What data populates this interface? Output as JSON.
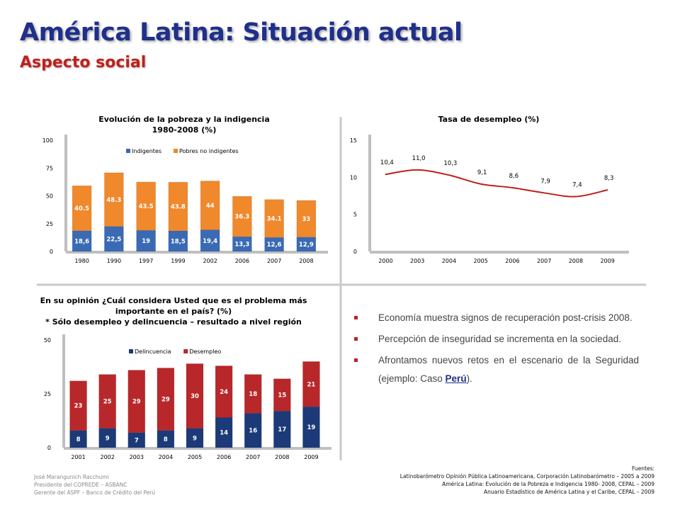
{
  "header": {
    "title": "América Latina: Situación actual",
    "subtitle": "Aspecto social"
  },
  "colors": {
    "title": "#1f2f8a",
    "subtitle": "#c0201b",
    "indigentes": "#3a6ab4",
    "pobres": "#f0882c",
    "delincuencia": "#1c3a78",
    "desempleo": "#b8272a",
    "unemployment_line": "#c0201b"
  },
  "poverty_chart": {
    "title_line1": "Evolución de la pobreza y la indigencia",
    "title_line2": "1980-2008 (%)"
  },
  "unemployment_chart": {
    "title": "Tasa de desempleo (%)"
  },
  "opinion_chart": {
    "title_line1": "En su opinión ¿Cuál considera Usted que es el problema más",
    "title_line2": "importante en el país? (%)",
    "title_line3": "* Sólo desempleo y delincuencia – resultado a nivel región"
  },
  "bullets": [
    "Economía muestra signos de recuperación post-crisis 2008.",
    "Percepción de inseguridad se incrementa en la sociedad.",
    "Afrontamos nuevos retos en el escenario de la Seguridad (ejemplo: Caso "
  ],
  "bullet3_link": "Perú",
  "bullet3_tail": ").",
  "author": {
    "line1": "José Marangunich Racchumi",
    "line2": "Presidente del COPREDE – ASBANC",
    "line3": "Gerente del ASPF – Banco de Crédito del Perú"
  },
  "sources": {
    "heading": "Fuentes:",
    "line1": "Latinobarómetro Opinión Pública Latinoamericana, Corporación Latinobarómetro – 2005 a 2009",
    "line2": "América Latina: Evolución de la Pobreza e Indigencia 1980- 2008, CEPAL – 2009",
    "line3": "Anuario Estadístico de América Latina y el Caribe, CEPAL – 2009"
  },
  "chart_data": [
    {
      "type": "bar",
      "stacked": true,
      "title": "Evolución de la pobreza y la indigencia 1980-2008 (%)",
      "categories": [
        "1980",
        "1990",
        "1997",
        "1999",
        "2002",
        "2006",
        "2007",
        "2008"
      ],
      "series": [
        {
          "name": "Indigentes",
          "values": [
            18.6,
            22.5,
            19,
            18.5,
            19.4,
            13.3,
            12.6,
            12.9
          ],
          "labels": [
            "18,6",
            "22,5",
            "19",
            "18,5",
            "19,4",
            "13,3",
            "12,6",
            "12,9"
          ]
        },
        {
          "name": "Pobres no indigentes",
          "values": [
            40.5,
            48.3,
            43.5,
            43.8,
            44,
            36.3,
            34.1,
            33
          ],
          "labels": [
            "40.5",
            "48.3",
            "43.5",
            "43.8",
            "44",
            "36.3",
            "34.1",
            "33"
          ]
        }
      ],
      "ylim": [
        0,
        100
      ],
      "yticks": [
        0,
        25,
        50,
        75,
        100
      ],
      "legend": "top-center"
    },
    {
      "type": "line",
      "title": "Tasa de desempleo (%)",
      "categories": [
        "2000",
        "2003",
        "2004",
        "2005",
        "2006",
        "2007",
        "2008",
        "2009"
      ],
      "values": [
        10.4,
        11.0,
        10.3,
        9.1,
        8.6,
        7.9,
        7.4,
        8.3
      ],
      "labels": [
        "10,4",
        "11,0",
        "10,3",
        "9,1",
        "8,6",
        "7,9",
        "7,4",
        "8,3"
      ],
      "ylim": [
        0,
        15
      ],
      "yticks": [
        0,
        5,
        10,
        15
      ]
    },
    {
      "type": "bar",
      "stacked": true,
      "title": "En su opinión ¿Cuál considera Usted que es el problema más importante en el país? (%)",
      "categories": [
        "2001",
        "2002",
        "2003",
        "2004",
        "2005",
        "2006",
        "2007",
        "2008",
        "2009"
      ],
      "series": [
        {
          "name": "Delincuencia",
          "values": [
            8,
            9,
            7,
            8,
            9,
            14,
            16,
            17,
            19
          ]
        },
        {
          "name": "Desempleo",
          "values": [
            23,
            25,
            29,
            29,
            30,
            24,
            18,
            15,
            21
          ]
        }
      ],
      "ylim": [
        0,
        50
      ],
      "yticks": [
        0,
        25,
        50
      ],
      "legend": "top-center"
    }
  ]
}
